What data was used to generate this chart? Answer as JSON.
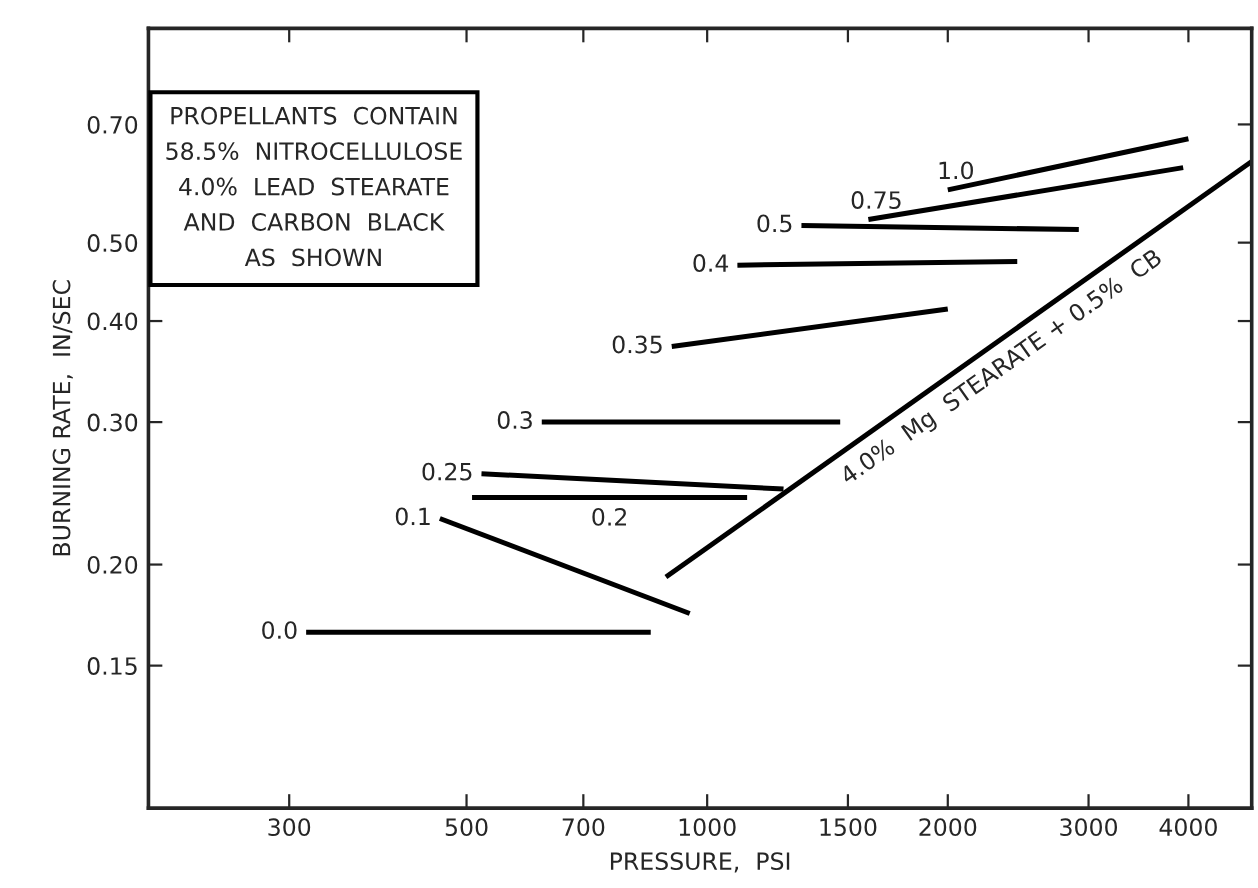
{
  "chart_data": {
    "type": "line",
    "xlabel": "PRESSURE,  PSI",
    "ylabel": "BURNING RATE,  IN/SEC",
    "log": "xy",
    "grid": false,
    "legend": false,
    "marker": "none",
    "line_style": "solid",
    "xlim": [
      200,
      4800
    ],
    "ylim": [
      0.1,
      0.92
    ],
    "xticks": [
      300,
      500,
      700,
      1000,
      1500,
      2000,
      3000,
      4000
    ],
    "yticks": [
      0.15,
      {
        "value": 0.2,
        "label": "0.20"
      },
      {
        "value": 0.3,
        "label": "0.30"
      },
      {
        "value": 0.4,
        "label": "0.40"
      },
      {
        "value": 0.5,
        "label": "0.50"
      },
      {
        "value": 0.7,
        "label": "0.70"
      }
    ],
    "series": [
      {
        "name": "0.0",
        "color": "#000000",
        "x": [
          315,
          850
        ],
        "values": [
          0.165,
          0.165
        ]
      },
      {
        "name": "0.1",
        "color": "#000000",
        "x": [
          463,
          951
        ],
        "values": [
          0.228,
          0.174
        ]
      },
      {
        "name": "0.2",
        "color": "#000000",
        "x": [
          508,
          1122
        ],
        "values": [
          0.242,
          0.242
        ]
      },
      {
        "name": "0.25",
        "color": "#000000",
        "x": [
          522,
          1246
        ],
        "values": [
          0.259,
          0.248
        ]
      },
      {
        "name": "0.3",
        "color": "#000000",
        "x": [
          621,
          1467
        ],
        "values": [
          0.3,
          0.3
        ]
      },
      {
        "name": "0.35",
        "color": "#000000",
        "x": [
          903,
          2000
        ],
        "values": [
          0.372,
          0.414
        ]
      },
      {
        "name": "0.4",
        "color": "#000000",
        "x": [
          1091,
          2443
        ],
        "values": [
          0.469,
          0.474
        ]
      },
      {
        "name": "0.5",
        "color": "#000000",
        "x": [
          1312,
          2917
        ],
        "values": [
          0.525,
          0.519
        ]
      },
      {
        "name": "0.75",
        "color": "#000000",
        "x": [
          1591,
          3940
        ],
        "values": [
          0.534,
          0.619
        ]
      },
      {
        "name": "1.0",
        "color": "#000000",
        "x": [
          2000,
          4000
        ],
        "values": [
          0.581,
          0.672
        ]
      },
      {
        "name": "4.0%  Mg  STEARATE + 0.5%  CB",
        "color": "#000000",
        "x": [
          888,
          4800
        ],
        "values": [
          0.193,
          0.63
        ]
      }
    ],
    "annotations": [
      "PROPELLANTS  CONTAIN\n58.5%  NITROCELLULOSE\n4.0%  LEAD  STEARATE\nAND  CARBON  BLACK\nAS  SHOWN"
    ]
  }
}
